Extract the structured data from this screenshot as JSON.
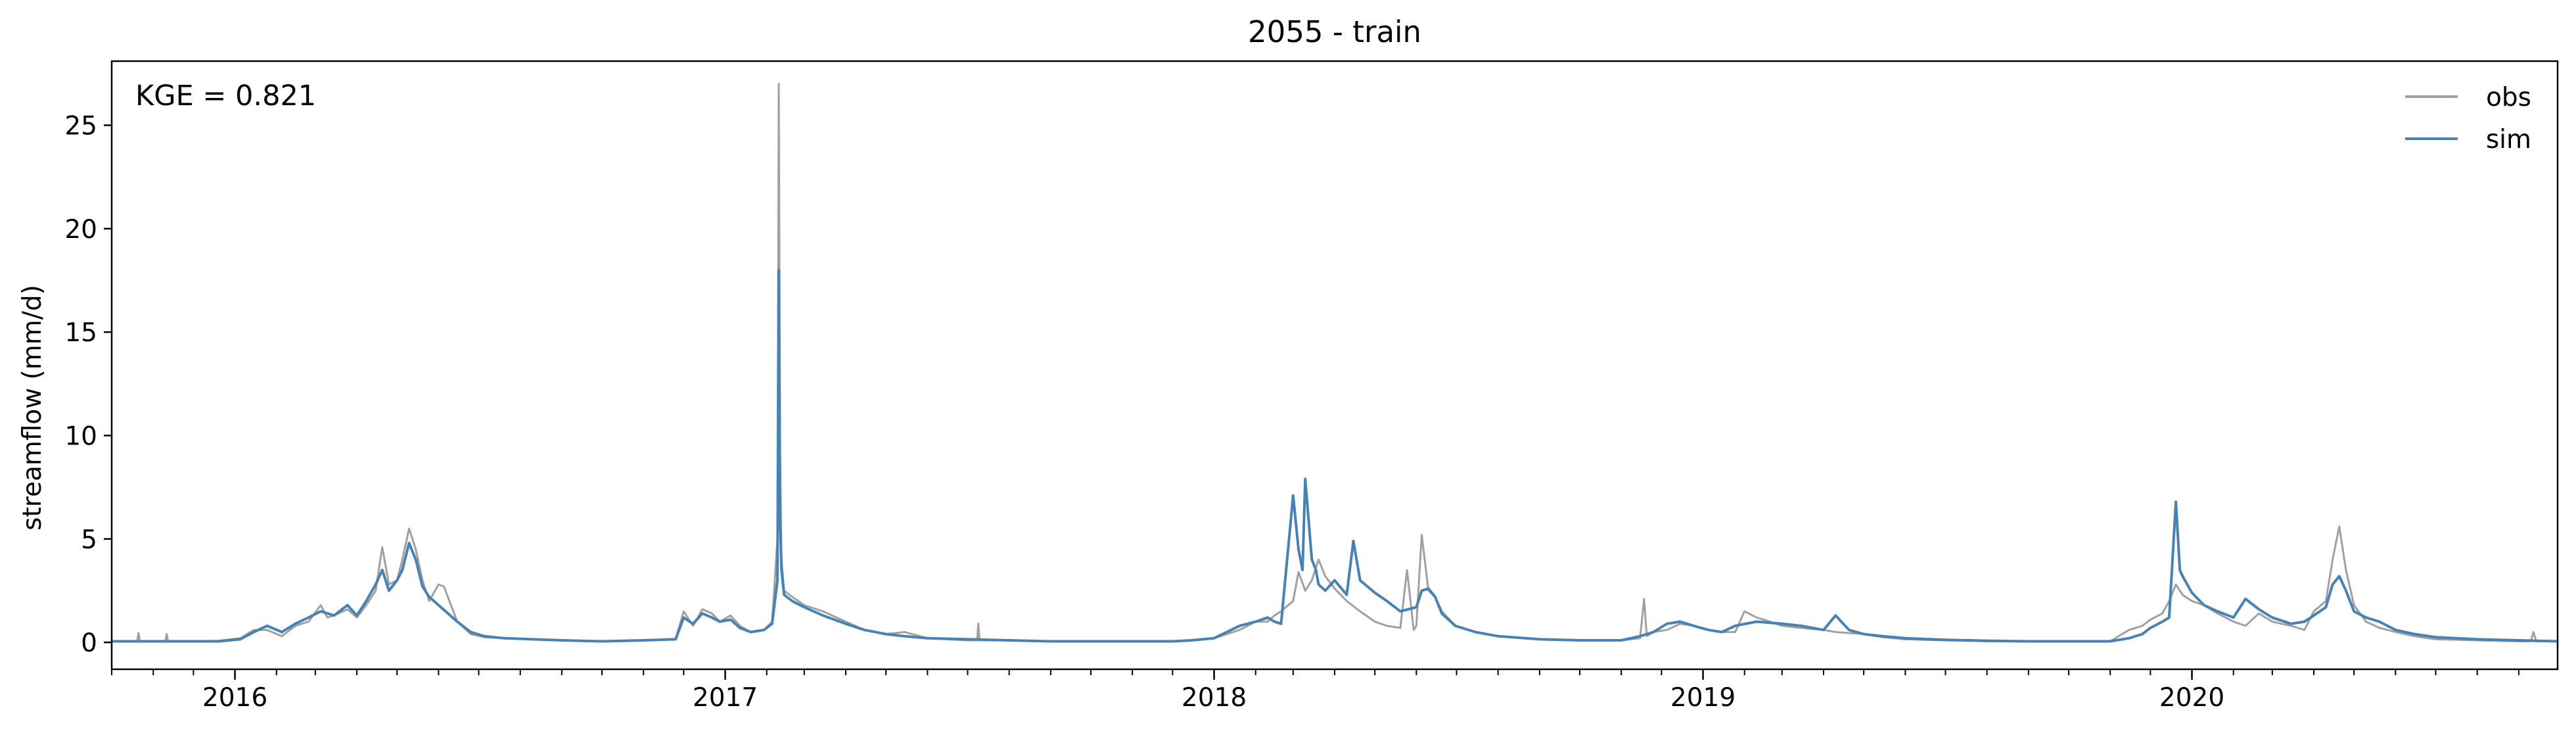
{
  "chart_data": {
    "type": "line",
    "title": "2055 - train",
    "xlabel": "",
    "ylabel": "streamflow (mm/d)",
    "annotation": "KGE = 0.821",
    "xlim": [
      "2015-10-01",
      "2020-09-30"
    ],
    "ylim": [
      -1.3,
      28.1
    ],
    "yticks": [
      0,
      5,
      10,
      15,
      20,
      25
    ],
    "ytick_labels": [
      "0",
      "5",
      "10",
      "15",
      "20",
      "25"
    ],
    "xticks": [
      "2016-01-01",
      "2017-01-01",
      "2018-01-01",
      "2019-01-01",
      "2020-01-01"
    ],
    "xtick_labels": [
      "2016",
      "2017",
      "2018",
      "2019",
      "2020"
    ],
    "grid": false,
    "legend": "upper right",
    "series": [
      {
        "name": "obs",
        "color": "#a0a0a0",
        "x": [
          "2015-10-01",
          "2015-10-20",
          "2015-10-21",
          "2015-10-22",
          "2015-11-10",
          "2015-11-11",
          "2015-11-12",
          "2015-12-01",
          "2015-12-20",
          "2016-01-05",
          "2016-01-15",
          "2016-01-25",
          "2016-02-05",
          "2016-02-15",
          "2016-02-25",
          "2016-03-05",
          "2016-03-10",
          "2016-03-15",
          "2016-03-25",
          "2016-04-01",
          "2016-04-08",
          "2016-04-15",
          "2016-04-20",
          "2016-04-25",
          "2016-05-01",
          "2016-05-05",
          "2016-05-10",
          "2016-05-15",
          "2016-05-20",
          "2016-05-25",
          "2016-06-01",
          "2016-06-05",
          "2016-06-15",
          "2016-06-25",
          "2016-07-05",
          "2016-07-20",
          "2016-08-10",
          "2016-09-01",
          "2016-10-01",
          "2016-11-01",
          "2016-11-25",
          "2016-12-01",
          "2016-12-08",
          "2016-12-15",
          "2016-12-22",
          "2016-12-28",
          "2017-01-05",
          "2017-01-12",
          "2017-01-20",
          "2017-01-30",
          "2017-02-05",
          "2017-02-09",
          "2017-02-10",
          "2017-02-11",
          "2017-02-12",
          "2017-02-14",
          "2017-02-20",
          "2017-03-01",
          "2017-03-15",
          "2017-04-01",
          "2017-04-15",
          "2017-05-01",
          "2017-05-15",
          "2017-06-01",
          "2017-06-15",
          "2017-07-01",
          "2017-07-08",
          "2017-07-09",
          "2017-07-10",
          "2017-08-01",
          "2017-09-01",
          "2017-10-01",
          "2017-11-01",
          "2017-12-01",
          "2017-12-15",
          "2018-01-01",
          "2018-01-20",
          "2018-02-01",
          "2018-02-10",
          "2018-02-15",
          "2018-02-20",
          "2018-03-01",
          "2018-03-05",
          "2018-03-10",
          "2018-03-15",
          "2018-03-20",
          "2018-03-25",
          "2018-04-01",
          "2018-04-10",
          "2018-04-20",
          "2018-05-01",
          "2018-05-10",
          "2018-05-20",
          "2018-05-25",
          "2018-05-30",
          "2018-06-01",
          "2018-06-05",
          "2018-06-10",
          "2018-06-15",
          "2018-06-20",
          "2018-06-30",
          "2018-07-15",
          "2018-08-01",
          "2018-09-01",
          "2018-10-01",
          "2018-11-01",
          "2018-11-15",
          "2018-11-18",
          "2018-11-20",
          "2018-11-25",
          "2018-12-05",
          "2018-12-15",
          "2018-12-25",
          "2019-01-05",
          "2019-01-15",
          "2019-01-25",
          "2019-02-01",
          "2019-02-10",
          "2019-02-20",
          "2019-03-01",
          "2019-03-15",
          "2019-04-01",
          "2019-04-10",
          "2019-04-20",
          "2019-05-01",
          "2019-05-15",
          "2019-06-01",
          "2019-07-01",
          "2019-08-01",
          "2019-09-01",
          "2019-10-01",
          "2019-11-01",
          "2019-11-15",
          "2019-11-25",
          "2019-12-01",
          "2019-12-10",
          "2019-12-15",
          "2019-12-20",
          "2019-12-25",
          "2020-01-01",
          "2020-01-10",
          "2020-01-20",
          "2020-02-01",
          "2020-02-10",
          "2020-02-20",
          "2020-03-01",
          "2020-03-15",
          "2020-03-25",
          "2020-04-01",
          "2020-04-10",
          "2020-04-15",
          "2020-04-20",
          "2020-04-25",
          "2020-05-01",
          "2020-05-10",
          "2020-05-20",
          "2020-06-01",
          "2020-06-15",
          "2020-07-01",
          "2020-08-01",
          "2020-09-01",
          "2020-09-10",
          "2020-09-12",
          "2020-09-14",
          "2020-09-30"
        ],
        "values": [
          0.05,
          0.05,
          0.45,
          0.05,
          0.05,
          0.4,
          0.05,
          0.05,
          0.08,
          0.2,
          0.6,
          0.6,
          0.3,
          0.8,
          1.0,
          1.8,
          1.2,
          1.3,
          1.6,
          1.2,
          1.8,
          2.5,
          4.6,
          2.8,
          3.0,
          4.0,
          5.5,
          4.5,
          3.0,
          2.0,
          2.8,
          2.7,
          1.0,
          0.4,
          0.25,
          0.2,
          0.15,
          0.1,
          0.05,
          0.1,
          0.15,
          1.5,
          0.8,
          1.6,
          1.4,
          1.0,
          1.3,
          0.8,
          0.5,
          0.6,
          1.0,
          5.0,
          27.0,
          9.0,
          4.0,
          2.5,
          2.2,
          1.8,
          1.5,
          1.0,
          0.6,
          0.4,
          0.5,
          0.2,
          0.15,
          0.1,
          0.1,
          0.9,
          0.1,
          0.1,
          0.05,
          0.05,
          0.05,
          0.05,
          0.08,
          0.2,
          0.6,
          1.0,
          1.0,
          1.3,
          1.5,
          2.0,
          3.4,
          2.5,
          3.0,
          4.0,
          3.2,
          2.6,
          2.0,
          1.5,
          1.0,
          0.8,
          0.7,
          3.5,
          0.6,
          0.8,
          5.2,
          2.5,
          2.2,
          1.5,
          0.8,
          0.5,
          0.3,
          0.15,
          0.1,
          0.1,
          0.2,
          2.1,
          0.3,
          0.5,
          0.6,
          0.9,
          0.8,
          0.6,
          0.5,
          0.5,
          1.5,
          1.2,
          1.0,
          0.8,
          0.7,
          0.6,
          0.5,
          0.45,
          0.4,
          0.25,
          0.15,
          0.1,
          0.05,
          0.05,
          0.05,
          0.05,
          0.6,
          0.8,
          1.1,
          1.4,
          2.0,
          2.8,
          2.3,
          2.0,
          1.8,
          1.4,
          1.0,
          0.8,
          1.4,
          1.0,
          0.8,
          0.6,
          1.5,
          2.0,
          4.0,
          5.6,
          3.5,
          1.8,
          1.0,
          0.7,
          0.5,
          0.3,
          0.15,
          0.1,
          0.05,
          0.05,
          0.5,
          0.05,
          0.05
        ]
      },
      {
        "name": "sim",
        "color": "#4682b4",
        "x": [
          "2015-10-01",
          "2015-12-20",
          "2016-01-05",
          "2016-01-15",
          "2016-01-25",
          "2016-02-05",
          "2016-02-15",
          "2016-02-25",
          "2016-03-05",
          "2016-03-15",
          "2016-03-25",
          "2016-04-01",
          "2016-04-08",
          "2016-04-15",
          "2016-04-20",
          "2016-04-25",
          "2016-05-01",
          "2016-05-05",
          "2016-05-10",
          "2016-05-15",
          "2016-05-20",
          "2016-05-25",
          "2016-06-01",
          "2016-06-15",
          "2016-06-25",
          "2016-07-05",
          "2016-07-20",
          "2016-08-10",
          "2016-09-01",
          "2016-10-01",
          "2016-11-01",
          "2016-11-25",
          "2016-12-01",
          "2016-12-08",
          "2016-12-15",
          "2016-12-22",
          "2016-12-28",
          "2017-01-05",
          "2017-01-12",
          "2017-01-20",
          "2017-01-30",
          "2017-02-05",
          "2017-02-09",
          "2017-02-10",
          "2017-02-11",
          "2017-02-12",
          "2017-02-14",
          "2017-02-20",
          "2017-03-01",
          "2017-03-15",
          "2017-04-01",
          "2017-04-15",
          "2017-05-01",
          "2017-05-15",
          "2017-06-01",
          "2017-07-01",
          "2017-08-01",
          "2017-09-01",
          "2017-10-01",
          "2017-11-01",
          "2017-12-01",
          "2017-12-15",
          "2018-01-01",
          "2018-01-20",
          "2018-02-01",
          "2018-02-10",
          "2018-02-15",
          "2018-02-20",
          "2018-03-01",
          "2018-03-05",
          "2018-03-08",
          "2018-03-10",
          "2018-03-15",
          "2018-03-18",
          "2018-03-20",
          "2018-03-25",
          "2018-04-01",
          "2018-04-10",
          "2018-04-15",
          "2018-04-20",
          "2018-05-01",
          "2018-05-10",
          "2018-05-20",
          "2018-06-01",
          "2018-06-05",
          "2018-06-10",
          "2018-06-15",
          "2018-06-20",
          "2018-06-30",
          "2018-07-15",
          "2018-08-01",
          "2018-09-01",
          "2018-10-01",
          "2018-11-01",
          "2018-11-15",
          "2018-11-25",
          "2018-12-05",
          "2018-12-15",
          "2018-12-25",
          "2019-01-05",
          "2019-01-15",
          "2019-01-25",
          "2019-02-10",
          "2019-03-01",
          "2019-03-15",
          "2019-04-01",
          "2019-04-10",
          "2019-04-20",
          "2019-05-01",
          "2019-05-15",
          "2019-06-01",
          "2019-07-01",
          "2019-08-01",
          "2019-09-01",
          "2019-10-01",
          "2019-11-01",
          "2019-11-15",
          "2019-11-25",
          "2019-12-01",
          "2019-12-10",
          "2019-12-15",
          "2019-12-20",
          "2019-12-23",
          "2019-12-25",
          "2020-01-01",
          "2020-01-10",
          "2020-01-20",
          "2020-02-01",
          "2020-02-10",
          "2020-02-20",
          "2020-03-01",
          "2020-03-15",
          "2020-03-25",
          "2020-04-01",
          "2020-04-10",
          "2020-04-15",
          "2020-04-20",
          "2020-04-25",
          "2020-05-01",
          "2020-05-10",
          "2020-05-20",
          "2020-06-01",
          "2020-06-15",
          "2020-07-01",
          "2020-08-01",
          "2020-09-01",
          "2020-09-30"
        ],
        "values": [
          0.05,
          0.05,
          0.15,
          0.5,
          0.8,
          0.5,
          0.9,
          1.2,
          1.5,
          1.3,
          1.8,
          1.3,
          2.0,
          2.8,
          3.5,
          2.5,
          3.0,
          3.5,
          4.8,
          4.0,
          2.7,
          2.2,
          1.8,
          1.0,
          0.5,
          0.3,
          0.2,
          0.15,
          0.1,
          0.05,
          0.1,
          0.15,
          1.2,
          0.9,
          1.4,
          1.2,
          1.0,
          1.1,
          0.7,
          0.5,
          0.6,
          0.9,
          3.0,
          18.0,
          6.0,
          3.5,
          2.3,
          2.0,
          1.7,
          1.3,
          0.9,
          0.6,
          0.4,
          0.3,
          0.2,
          0.15,
          0.1,
          0.05,
          0.05,
          0.05,
          0.05,
          0.1,
          0.2,
          0.8,
          1.0,
          1.2,
          1.0,
          0.9,
          7.1,
          4.5,
          3.5,
          7.9,
          4.0,
          3.5,
          2.8,
          2.5,
          3.0,
          2.3,
          4.9,
          3.0,
          2.4,
          2.0,
          1.5,
          1.7,
          2.5,
          2.6,
          2.2,
          1.4,
          0.8,
          0.5,
          0.3,
          0.15,
          0.1,
          0.1,
          0.3,
          0.5,
          0.9,
          1.0,
          0.8,
          0.6,
          0.5,
          0.8,
          1.0,
          0.9,
          0.8,
          0.6,
          1.3,
          0.6,
          0.4,
          0.3,
          0.2,
          0.12,
          0.08,
          0.05,
          0.05,
          0.05,
          0.2,
          0.4,
          0.7,
          1.0,
          1.2,
          6.8,
          3.5,
          3.2,
          2.4,
          1.8,
          1.5,
          1.2,
          2.1,
          1.6,
          1.2,
          0.9,
          1.0,
          1.3,
          1.7,
          2.8,
          3.2,
          2.5,
          1.5,
          1.2,
          1.0,
          0.6,
          0.4,
          0.25,
          0.15,
          0.1,
          0.05
        ]
      }
    ]
  }
}
